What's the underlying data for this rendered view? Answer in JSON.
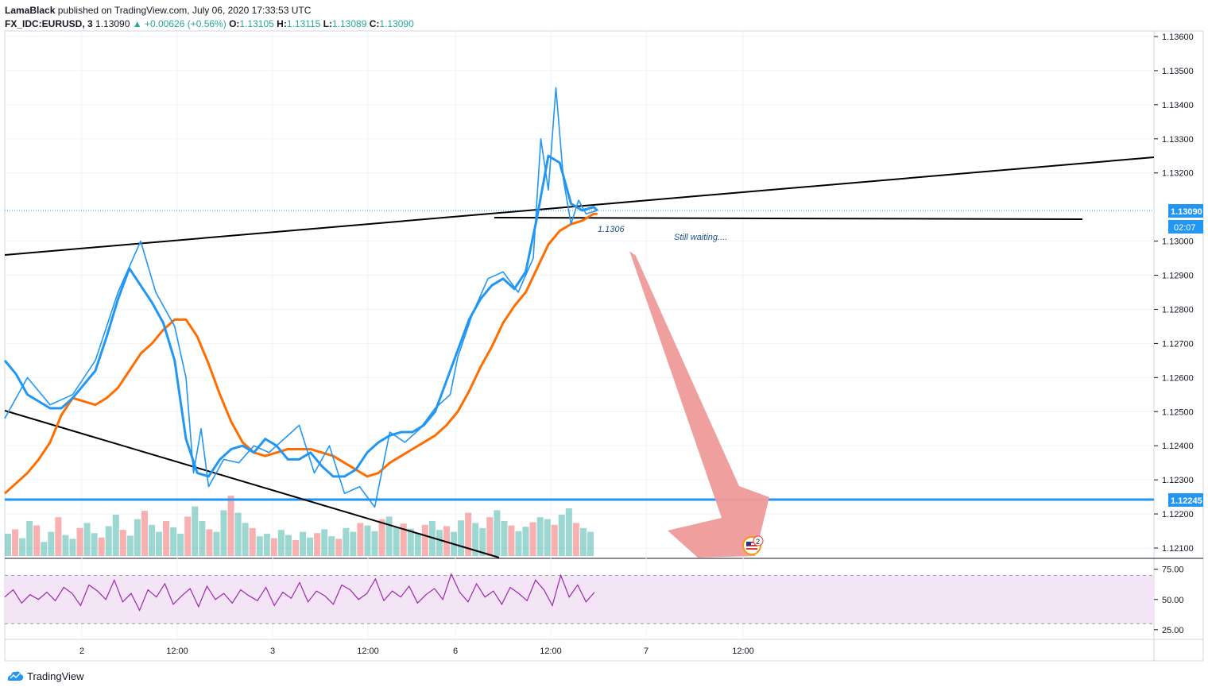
{
  "header": {
    "author": "LamaBlack",
    "published": "published on TradingView.com, July 06, 2020 17:33:53 UTC"
  },
  "ohlc": {
    "symbol": "FX_IDC:EURUSD, 3",
    "last": "1.13090",
    "change": "▲ +0.00626 (+0.56%)",
    "o_label": "O:",
    "o": "1.13105",
    "h_label": "H:",
    "h": "1.13115",
    "l_label": "L:",
    "l": "1.13089",
    "c_label": "C:",
    "c": "1.13090"
  },
  "footer": {
    "brand": "TradingView",
    "icon": "tradingview-logo-icon"
  },
  "colors": {
    "price": "#2196f3",
    "ma": "#ff6d00",
    "trendline": "#000000",
    "support": "#2196f3",
    "arrow": "#ef9a9a",
    "rsi": "#9c27b0",
    "rsi_band": "#f3e5f5",
    "volume_up": "#26a69a",
    "volume_down": "#ef5350"
  },
  "annotations": {
    "level_label": "1.1306",
    "note": "Still waiting....",
    "event_badge_count": "2",
    "event_icon": "us-flag-icon"
  },
  "price_tags": {
    "last": "1.13090",
    "countdown": "02:07",
    "support": "1.12245"
  },
  "chart_data": {
    "type": "line",
    "title": "",
    "price_axis": {
      "ylim": [
        1.2095,
        1.1362
      ],
      "ticks": [
        "1.13600",
        "1.13500",
        "1.13400",
        "1.13300",
        "1.13200",
        "1.13000",
        "1.12900",
        "1.12800",
        "1.12700",
        "1.12600",
        "1.12500",
        "1.12400",
        "1.12300",
        "1.12200",
        "1.12100"
      ]
    },
    "time_axis": {
      "ticks": [
        "2",
        "12:00",
        "3",
        "12:00",
        "6",
        "12:00",
        "7",
        "12:00"
      ]
    },
    "rsi_axis": {
      "ylim": [
        17,
        84
      ],
      "ticks": [
        "75.00",
        "50.00",
        "25.00"
      ],
      "band": [
        30,
        70
      ]
    },
    "series": [
      {
        "name": "",
        "values": [
          [
            0,
            1.1265
          ],
          [
            3,
            1.1261
          ],
          [
            6,
            1.1255
          ],
          [
            9,
            1.1253
          ],
          [
            12,
            1.1251
          ],
          [
            15,
            1.1251
          ],
          [
            18,
            1.1254
          ],
          [
            21,
            1.1258
          ],
          [
            24,
            1.1262
          ],
          [
            27,
            1.1272
          ],
          [
            30,
            1.1283
          ],
          [
            33,
            1.1292
          ],
          [
            36,
            1.1287
          ],
          [
            39,
            1.1282
          ],
          [
            42,
            1.1276
          ],
          [
            45,
            1.1265
          ],
          [
            48,
            1.1242
          ],
          [
            51,
            1.1232
          ],
          [
            54,
            1.1231
          ],
          [
            57,
            1.1236
          ],
          [
            60,
            1.1239
          ],
          [
            63,
            1.124
          ],
          [
            66,
            1.1238
          ],
          [
            69,
            1.1242
          ],
          [
            72,
            1.124
          ],
          [
            75,
            1.1236
          ],
          [
            78,
            1.1236
          ],
          [
            81,
            1.1238
          ],
          [
            84,
            1.1234
          ],
          [
            87,
            1.1231
          ],
          [
            90,
            1.1231
          ],
          [
            93,
            1.1233
          ],
          [
            96,
            1.1238
          ],
          [
            99,
            1.1241
          ],
          [
            102,
            1.1243
          ],
          [
            105,
            1.1244
          ],
          [
            108,
            1.1244
          ],
          [
            111,
            1.1246
          ],
          [
            114,
            1.125
          ],
          [
            117,
            1.1259
          ],
          [
            120,
            1.1268
          ],
          [
            123,
            1.1277
          ],
          [
            126,
            1.1283
          ],
          [
            129,
            1.1287
          ],
          [
            132,
            1.1289
          ],
          [
            135,
            1.1286
          ],
          [
            138,
            1.1291
          ],
          [
            141,
            1.1307
          ],
          [
            144,
            1.1325
          ],
          [
            147,
            1.1323
          ],
          [
            150,
            1.1311
          ],
          [
            153,
            1.1309
          ],
          [
            156,
            1.131
          ],
          [
            157,
            1.1309
          ]
        ]
      },
      {
        "name": "",
        "values": [
          [
            0,
            1.1226
          ],
          [
            3,
            1.1229
          ],
          [
            6,
            1.1232
          ],
          [
            9,
            1.1236
          ],
          [
            12,
            1.1241
          ],
          [
            15,
            1.1249
          ],
          [
            18,
            1.1254
          ],
          [
            21,
            1.1253
          ],
          [
            24,
            1.1252
          ],
          [
            27,
            1.1254
          ],
          [
            30,
            1.1257
          ],
          [
            33,
            1.1262
          ],
          [
            36,
            1.1267
          ],
          [
            39,
            1.127
          ],
          [
            42,
            1.1274
          ],
          [
            45,
            1.1277
          ],
          [
            48,
            1.1277
          ],
          [
            51,
            1.1272
          ],
          [
            54,
            1.1264
          ],
          [
            57,
            1.1255
          ],
          [
            60,
            1.1247
          ],
          [
            63,
            1.1241
          ],
          [
            66,
            1.1238
          ],
          [
            69,
            1.1237
          ],
          [
            72,
            1.1238
          ],
          [
            75,
            1.1239
          ],
          [
            78,
            1.1239
          ],
          [
            81,
            1.1239
          ],
          [
            84,
            1.1238
          ],
          [
            87,
            1.1237
          ],
          [
            90,
            1.1235
          ],
          [
            93,
            1.1233
          ],
          [
            96,
            1.1231
          ],
          [
            99,
            1.1232
          ],
          [
            102,
            1.1235
          ],
          [
            105,
            1.1237
          ],
          [
            108,
            1.1239
          ],
          [
            111,
            1.1241
          ],
          [
            114,
            1.1243
          ],
          [
            117,
            1.1246
          ],
          [
            120,
            1.125
          ],
          [
            123,
            1.1256
          ],
          [
            126,
            1.1263
          ],
          [
            129,
            1.1269
          ],
          [
            132,
            1.1276
          ],
          [
            135,
            1.1281
          ],
          [
            138,
            1.1285
          ],
          [
            141,
            1.1292
          ],
          [
            144,
            1.1299
          ],
          [
            147,
            1.1303
          ],
          [
            150,
            1.1305
          ],
          [
            153,
            1.1306
          ],
          [
            156,
            1.1308
          ],
          [
            157,
            1.1308
          ]
        ]
      },
      {
        "name": "",
        "values": [
          [
            0,
            1.1248
          ],
          [
            6,
            1.126
          ],
          [
            12,
            1.1252
          ],
          [
            18,
            1.1255
          ],
          [
            24,
            1.1265
          ],
          [
            30,
            1.1285
          ],
          [
            36,
            1.13
          ],
          [
            40,
            1.1285
          ],
          [
            45,
            1.1275
          ],
          [
            48,
            1.126
          ],
          [
            50,
            1.1232
          ],
          [
            52,
            1.1245
          ],
          [
            54,
            1.1228
          ],
          [
            58,
            1.1236
          ],
          [
            62,
            1.1235
          ],
          [
            66,
            1.124
          ],
          [
            70,
            1.1238
          ],
          [
            74,
            1.1242
          ],
          [
            78,
            1.1246
          ],
          [
            82,
            1.1232
          ],
          [
            86,
            1.124
          ],
          [
            90,
            1.1226
          ],
          [
            94,
            1.1228
          ],
          [
            98,
            1.1222
          ],
          [
            102,
            1.1244
          ],
          [
            106,
            1.1241
          ],
          [
            110,
            1.1245
          ],
          [
            114,
            1.1251
          ],
          [
            118,
            1.1255
          ],
          [
            120,
            1.1266
          ],
          [
            124,
            1.1279
          ],
          [
            128,
            1.1289
          ],
          [
            132,
            1.1291
          ],
          [
            136,
            1.1285
          ],
          [
            140,
            1.1295
          ],
          [
            142,
            1.133
          ],
          [
            144,
            1.1315
          ],
          [
            146,
            1.1345
          ],
          [
            148,
            1.1318
          ],
          [
            150,
            1.1305
          ],
          [
            152,
            1.1312
          ],
          [
            154,
            1.1308
          ],
          [
            157,
            1.1309
          ]
        ]
      }
    ],
    "rsi": [
      52,
      58,
      47,
      54,
      50,
      56,
      49,
      60,
      55,
      45,
      62,
      57,
      50,
      66,
      48,
      55,
      41,
      58,
      52,
      63,
      46,
      53,
      59,
      44,
      61,
      50,
      55,
      47,
      58,
      53,
      49,
      60,
      45,
      56,
      51,
      64,
      48,
      57,
      53,
      46,
      62,
      58,
      50,
      55,
      67,
      49,
      57,
      52,
      61,
      47,
      54,
      59,
      50,
      71,
      56,
      48,
      63,
      52,
      57,
      46,
      60,
      55,
      49,
      66,
      58,
      45,
      70,
      52,
      62,
      48,
      56
    ],
    "volume": [
      0.35,
      0.42,
      0.28,
      0.55,
      0.48,
      0.22,
      0.38,
      0.61,
      0.33,
      0.27,
      0.44,
      0.52,
      0.36,
      0.29,
      0.47,
      0.65,
      0.41,
      0.32,
      0.58,
      0.71,
      0.49,
      0.38,
      0.55,
      0.45,
      0.35,
      0.62,
      0.78,
      0.55,
      0.42,
      0.38,
      0.72,
      0.95,
      0.68,
      0.52,
      0.44,
      0.31,
      0.35,
      0.28,
      0.41,
      0.33,
      0.25,
      0.38,
      0.29,
      0.36,
      0.42,
      0.31,
      0.27,
      0.44,
      0.38,
      0.52,
      0.48,
      0.39,
      0.58,
      0.62,
      0.45,
      0.51,
      0.43,
      0.36,
      0.49,
      0.55,
      0.41,
      0.47,
      0.38,
      0.56,
      0.68,
      0.52,
      0.44,
      0.61,
      0.72,
      0.55,
      0.48,
      0.39,
      0.46,
      0.53,
      0.61,
      0.58,
      0.49,
      0.65,
      0.75,
      0.52,
      0.44,
      0.38
    ]
  }
}
